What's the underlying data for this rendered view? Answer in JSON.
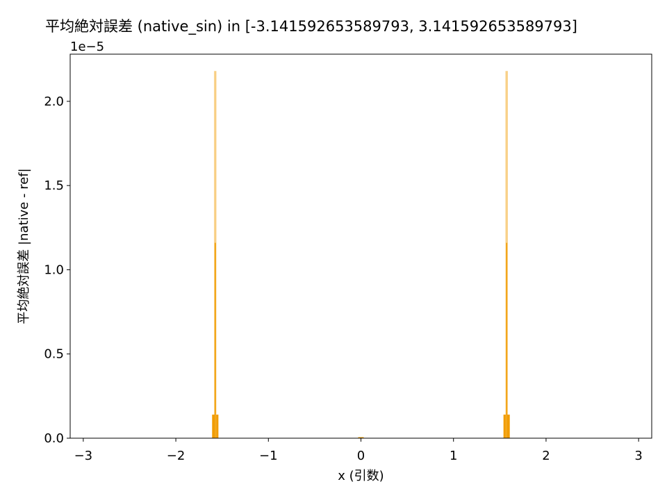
{
  "chart_data": {
    "type": "bar",
    "title": "平均絶対誤差 (native_sin) in [-3.141592653589793, 3.141592653589793]",
    "xlabel": "x (引数)",
    "ylabel": "平均絶対誤差 |native - ref|",
    "y_offset_label": "1e−5",
    "y_scale": 1e-05,
    "xlim": [
      -3.1416,
      3.1416
    ],
    "ylim": [
      0,
      2.28
    ],
    "xticks": [
      -3,
      -2,
      -1,
      0,
      1,
      2,
      3
    ],
    "xtick_labels": [
      "−3",
      "−2",
      "−1",
      "0",
      "1",
      "2",
      "3"
    ],
    "yticks": [
      0.0,
      0.5,
      1.0,
      1.5,
      2.0
    ],
    "ytick_labels": [
      "0.0",
      "0.5",
      "1.0",
      "1.5",
      "2.0"
    ],
    "grid": false,
    "legend": "none",
    "bar_color": "#f19c00",
    "series": [
      {
        "bars": [
          {
            "x0": -1.608,
            "x1": -1.584,
            "value": 0.14
          },
          {
            "x0": -1.584,
            "x1": -1.578,
            "value": 2.18
          },
          {
            "x0": -1.578,
            "x1": -1.57,
            "value": 1.16
          },
          {
            "x0": -1.57,
            "x1": -1.564,
            "value": 2.18
          },
          {
            "x0": -1.564,
            "x1": -1.54,
            "value": 0.14
          },
          {
            "x0": -0.03,
            "x1": 0.03,
            "value": 0.006
          },
          {
            "x0": 1.54,
            "x1": 1.564,
            "value": 0.14
          },
          {
            "x0": 1.564,
            "x1": 1.57,
            "value": 2.18
          },
          {
            "x0": 1.57,
            "x1": 1.578,
            "value": 1.16
          },
          {
            "x0": 1.578,
            "x1": 1.584,
            "value": 2.18
          },
          {
            "x0": 1.584,
            "x1": 1.608,
            "value": 0.14
          }
        ]
      }
    ]
  }
}
